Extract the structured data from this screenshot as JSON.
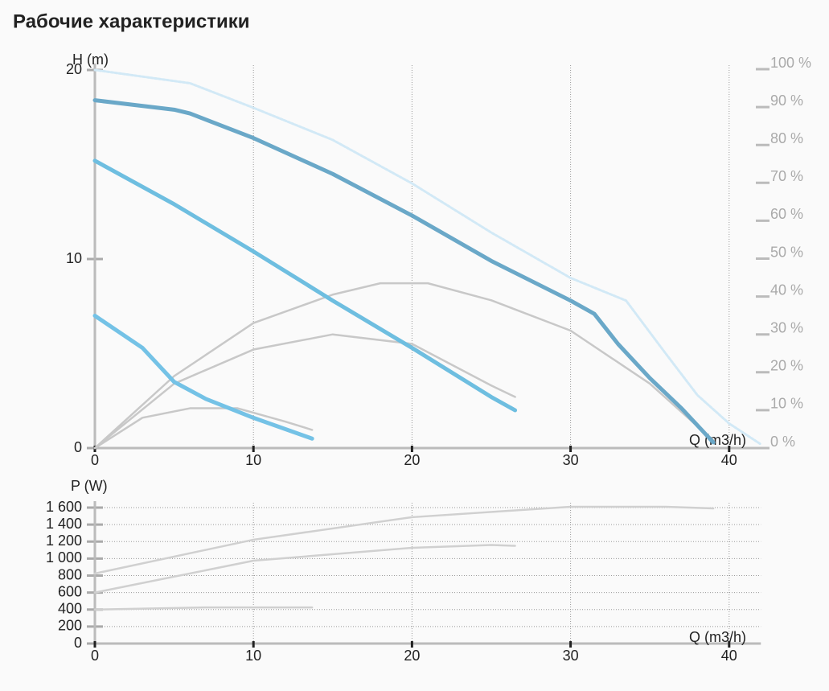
{
  "title": "Рабочие характеристики",
  "chart_data": [
    {
      "type": "line",
      "x_label": "Q (m3/h)",
      "y_label": "H (m)",
      "xlim": [
        0,
        42
      ],
      "xticks": [
        0,
        10,
        20,
        30,
        40
      ],
      "ylim": [
        0,
        20
      ],
      "yticks": [
        0,
        10,
        20
      ],
      "y2lim": [
        0,
        100
      ],
      "y2ticks": [
        {
          "value": 0,
          "label": "0 %"
        },
        {
          "value": 10,
          "label": "10 %"
        },
        {
          "value": 20,
          "label": "20 %"
        },
        {
          "value": 30,
          "label": "30 %"
        },
        {
          "value": 40,
          "label": "40 %"
        },
        {
          "value": 50,
          "label": "50 %"
        },
        {
          "value": 60,
          "label": "60 %"
        },
        {
          "value": 70,
          "label": "70 %"
        },
        {
          "value": 80,
          "label": "80 %"
        },
        {
          "value": 90,
          "label": "90 %"
        },
        {
          "value": 100,
          "label": "100 %"
        }
      ],
      "xgrid": true,
      "ygrid": false,
      "series": [
        {
          "color": "#d2e9f6",
          "style": "dotted",
          "x": [
            0,
            6,
            10,
            15,
            20,
            25,
            30,
            33.5,
            36,
            38,
            40,
            42
          ],
          "values": [
            20,
            19.3,
            18,
            16.3,
            14,
            11.4,
            9,
            7.8,
            5,
            2.8,
            1.3,
            0.2
          ]
        },
        {
          "color": "#c8c8c8",
          "axis": "y2",
          "x": [
            0,
            5,
            10,
            15,
            18,
            21,
            25,
            30,
            35,
            39
          ],
          "values": [
            0,
            19,
            33,
            40.5,
            43.5,
            43.5,
            39,
            31,
            17,
            2
          ]
        },
        {
          "color": "#c8c8c8",
          "axis": "y2",
          "x": [
            0,
            5,
            10,
            15,
            20,
            25,
            26.5
          ],
          "values": [
            0,
            17,
            26,
            30,
            27.5,
            16.5,
            13.5
          ]
        },
        {
          "color": "#c8c8c8",
          "axis": "y2",
          "x": [
            0,
            3,
            6,
            9,
            12,
            13.7
          ],
          "values": [
            0,
            8,
            10.5,
            10.5,
            7,
            4.8
          ]
        },
        {
          "color": "#6aa8c8",
          "x": [
            0,
            5,
            6,
            10,
            15,
            20,
            25,
            30,
            31.5,
            33,
            35,
            37,
            39
          ],
          "values": [
            18.4,
            17.9,
            17.7,
            16.4,
            14.5,
            12.3,
            9.9,
            7.8,
            7.1,
            5.5,
            3.7,
            2.1,
            0.3
          ]
        },
        {
          "color": "#6ebee0",
          "x": [
            0,
            5,
            10,
            15,
            20,
            25,
            26.5
          ],
          "values": [
            15.2,
            12.9,
            10.4,
            7.8,
            5.3,
            2.7,
            2.0
          ]
        },
        {
          "color": "#74c2e6",
          "x": [
            0,
            3,
            5,
            7,
            10,
            13.7
          ],
          "values": [
            7.0,
            5.3,
            3.5,
            2.6,
            1.6,
            0.5
          ]
        }
      ]
    },
    {
      "type": "line",
      "x_label": "Q (m3/h)",
      "y_label": "P (W)",
      "xlim": [
        0,
        42
      ],
      "xticks": [
        0,
        10,
        20,
        30,
        40
      ],
      "ylim": [
        0,
        1600
      ],
      "yticks": [
        0,
        200,
        400,
        600,
        800,
        {
          "value": 1000,
          "label": "1 000"
        },
        {
          "value": 1200,
          "label": "1 200"
        },
        {
          "value": 1400,
          "label": "1 400"
        },
        {
          "value": 1600,
          "label": "1 600"
        }
      ],
      "xgrid": true,
      "ygrid": true,
      "series": [
        {
          "color": "#d0d0d0",
          "x": [
            0,
            10,
            20,
            30,
            36,
            39
          ],
          "values": [
            824,
            1222,
            1487,
            1610,
            1610,
            1590
          ]
        },
        {
          "color": "#d0d0d0",
          "x": [
            0,
            10,
            20,
            25,
            26.5
          ],
          "values": [
            600,
            975,
            1127,
            1160,
            1150
          ]
        },
        {
          "color": "#d0d0d0",
          "x": [
            0,
            7,
            13.7
          ],
          "values": [
            400,
            425,
            425
          ]
        }
      ]
    }
  ]
}
